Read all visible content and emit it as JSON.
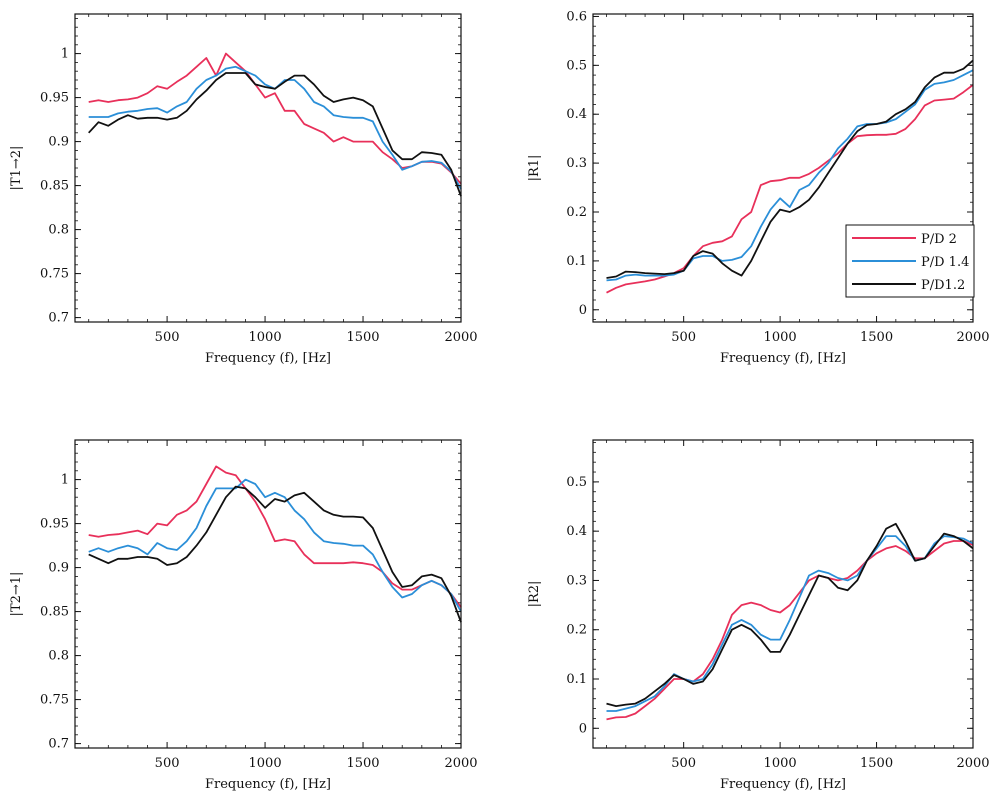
{
  "legend": {
    "entries": [
      {
        "name": "P/D 2",
        "color": "#e8305a"
      },
      {
        "name": "P/D 1.4",
        "color": "#2b8fd8"
      },
      {
        "name": "P/D1.2",
        "color": "#111111"
      }
    ]
  },
  "chart_data": [
    {
      "type": "line",
      "title": "",
      "xlabel": "Frequency (f), [Hz]",
      "ylabel": "|T1→2|",
      "xlim": [
        30,
        2000
      ],
      "ylim": [
        0.695,
        1.045
      ],
      "xticks": [
        500,
        1000,
        1500,
        2000
      ],
      "yticks": [
        0.7,
        0.75,
        0.8,
        0.85,
        0.9,
        0.95,
        1
      ],
      "ytick_labels": [
        "0.7",
        "0.75",
        "0.8",
        "0.85",
        "0.9",
        "0.95",
        "1"
      ],
      "grid": false,
      "x": [
        100,
        150,
        200,
        250,
        300,
        350,
        400,
        450,
        500,
        550,
        600,
        650,
        700,
        750,
        800,
        850,
        900,
        950,
        1000,
        1050,
        1100,
        1150,
        1200,
        1250,
        1300,
        1350,
        1400,
        1450,
        1500,
        1550,
        1600,
        1650,
        1700,
        1750,
        1800,
        1850,
        1900,
        1950,
        2000
      ],
      "series": [
        {
          "name": "P/D 2",
          "color": "#e8305a",
          "values": [
            0.945,
            0.947,
            0.945,
            0.947,
            0.948,
            0.95,
            0.955,
            0.963,
            0.96,
            0.968,
            0.975,
            0.985,
            0.995,
            0.975,
            1.0,
            0.99,
            0.98,
            0.965,
            0.95,
            0.955,
            0.935,
            0.935,
            0.92,
            0.915,
            0.91,
            0.9,
            0.905,
            0.9,
            0.9,
            0.9,
            0.888,
            0.88,
            0.87,
            0.872,
            0.877,
            0.877,
            0.875,
            0.865,
            0.852
          ]
        },
        {
          "name": "P/D 1.4",
          "color": "#2b8fd8",
          "values": [
            0.928,
            0.928,
            0.928,
            0.932,
            0.934,
            0.935,
            0.937,
            0.938,
            0.933,
            0.94,
            0.945,
            0.96,
            0.97,
            0.975,
            0.983,
            0.985,
            0.98,
            0.975,
            0.965,
            0.96,
            0.97,
            0.97,
            0.96,
            0.945,
            0.94,
            0.93,
            0.928,
            0.927,
            0.927,
            0.923,
            0.9,
            0.885,
            0.868,
            0.872,
            0.877,
            0.878,
            0.876,
            0.866,
            0.846
          ]
        },
        {
          "name": "P/D1.2",
          "color": "#111111",
          "values": [
            0.91,
            0.922,
            0.918,
            0.925,
            0.93,
            0.926,
            0.927,
            0.927,
            0.925,
            0.927,
            0.935,
            0.948,
            0.958,
            0.97,
            0.978,
            0.978,
            0.978,
            0.965,
            0.962,
            0.96,
            0.968,
            0.975,
            0.975,
            0.965,
            0.952,
            0.945,
            0.948,
            0.95,
            0.947,
            0.94,
            0.915,
            0.89,
            0.88,
            0.88,
            0.888,
            0.887,
            0.885,
            0.868,
            0.838
          ]
        }
      ]
    },
    {
      "type": "line",
      "title": "",
      "xlabel": "Frequency (f), [Hz]",
      "ylabel": "|R1|",
      "xlim": [
        30,
        2000
      ],
      "ylim": [
        -0.025,
        0.605
      ],
      "xticks": [
        500,
        1000,
        1500,
        2000
      ],
      "yticks": [
        0,
        0.1,
        0.2,
        0.3,
        0.4,
        0.5,
        0.6
      ],
      "ytick_labels": [
        "0",
        "0.1",
        "0.2",
        "0.3",
        "0.4",
        "0.5",
        "0.6"
      ],
      "grid": false,
      "legend_position": "right",
      "x": [
        100,
        150,
        200,
        250,
        300,
        350,
        400,
        450,
        500,
        550,
        600,
        650,
        700,
        750,
        800,
        850,
        900,
        950,
        1000,
        1050,
        1100,
        1150,
        1200,
        1250,
        1300,
        1350,
        1400,
        1450,
        1500,
        1550,
        1600,
        1650,
        1700,
        1750,
        1800,
        1850,
        1900,
        1950,
        2000
      ],
      "series": [
        {
          "name": "P/D 2",
          "color": "#e8305a",
          "values": [
            0.035,
            0.045,
            0.052,
            0.055,
            0.058,
            0.062,
            0.068,
            0.075,
            0.085,
            0.11,
            0.13,
            0.137,
            0.14,
            0.15,
            0.185,
            0.2,
            0.255,
            0.263,
            0.265,
            0.27,
            0.27,
            0.278,
            0.29,
            0.305,
            0.32,
            0.34,
            0.355,
            0.357,
            0.358,
            0.358,
            0.36,
            0.37,
            0.39,
            0.418,
            0.428,
            0.43,
            0.432,
            0.445,
            0.46
          ]
        },
        {
          "name": "P/D 1.4",
          "color": "#2b8fd8",
          "values": [
            0.06,
            0.062,
            0.07,
            0.072,
            0.07,
            0.07,
            0.07,
            0.072,
            0.08,
            0.105,
            0.11,
            0.11,
            0.1,
            0.102,
            0.108,
            0.13,
            0.17,
            0.205,
            0.228,
            0.21,
            0.245,
            0.255,
            0.28,
            0.3,
            0.33,
            0.35,
            0.375,
            0.38,
            0.38,
            0.383,
            0.39,
            0.405,
            0.42,
            0.45,
            0.462,
            0.465,
            0.47,
            0.48,
            0.49
          ]
        },
        {
          "name": "P/D1.2",
          "color": "#111111",
          "values": [
            0.065,
            0.068,
            0.078,
            0.077,
            0.075,
            0.074,
            0.073,
            0.075,
            0.08,
            0.11,
            0.12,
            0.115,
            0.095,
            0.08,
            0.07,
            0.1,
            0.14,
            0.18,
            0.205,
            0.2,
            0.21,
            0.225,
            0.25,
            0.28,
            0.31,
            0.34,
            0.365,
            0.378,
            0.38,
            0.385,
            0.4,
            0.41,
            0.425,
            0.455,
            0.475,
            0.485,
            0.485,
            0.493,
            0.51
          ]
        }
      ]
    },
    {
      "type": "line",
      "title": "",
      "xlabel": "Frequency (f), [Hz]",
      "ylabel": "|T2→1|",
      "xlim": [
        30,
        2000
      ],
      "ylim": [
        0.695,
        1.045
      ],
      "xticks": [
        500,
        1000,
        1500,
        2000
      ],
      "yticks": [
        0.7,
        0.75,
        0.8,
        0.85,
        0.9,
        0.95,
        1
      ],
      "ytick_labels": [
        "0.7",
        "0.75",
        "0.8",
        "0.85",
        "0.9",
        "0.95",
        "1"
      ],
      "grid": false,
      "x": [
        100,
        150,
        200,
        250,
        300,
        350,
        400,
        450,
        500,
        550,
        600,
        650,
        700,
        750,
        800,
        850,
        900,
        950,
        1000,
        1050,
        1100,
        1150,
        1200,
        1250,
        1300,
        1350,
        1400,
        1450,
        1500,
        1550,
        1600,
        1650,
        1700,
        1750,
        1800,
        1850,
        1900,
        1950,
        2000
      ],
      "series": [
        {
          "name": "P/D 2",
          "color": "#e8305a",
          "values": [
            0.937,
            0.935,
            0.937,
            0.938,
            0.94,
            0.942,
            0.938,
            0.95,
            0.948,
            0.96,
            0.965,
            0.975,
            0.995,
            1.015,
            1.008,
            1.005,
            0.99,
            0.975,
            0.955,
            0.93,
            0.932,
            0.93,
            0.915,
            0.905,
            0.905,
            0.905,
            0.905,
            0.906,
            0.905,
            0.903,
            0.895,
            0.882,
            0.875,
            0.875,
            0.88,
            0.885,
            0.88,
            0.87,
            0.855
          ]
        },
        {
          "name": "P/D 1.4",
          "color": "#2b8fd8",
          "values": [
            0.918,
            0.922,
            0.918,
            0.922,
            0.925,
            0.922,
            0.915,
            0.928,
            0.922,
            0.92,
            0.93,
            0.945,
            0.97,
            0.99,
            0.99,
            0.99,
            1.0,
            0.995,
            0.98,
            0.985,
            0.98,
            0.965,
            0.955,
            0.94,
            0.93,
            0.928,
            0.927,
            0.925,
            0.925,
            0.915,
            0.895,
            0.878,
            0.866,
            0.87,
            0.88,
            0.885,
            0.88,
            0.87,
            0.85
          ]
        },
        {
          "name": "P/D1.2",
          "color": "#111111",
          "values": [
            0.915,
            0.91,
            0.905,
            0.91,
            0.91,
            0.912,
            0.912,
            0.91,
            0.903,
            0.905,
            0.912,
            0.925,
            0.94,
            0.96,
            0.98,
            0.992,
            0.99,
            0.98,
            0.968,
            0.978,
            0.975,
            0.982,
            0.985,
            0.975,
            0.965,
            0.96,
            0.958,
            0.958,
            0.957,
            0.945,
            0.92,
            0.895,
            0.878,
            0.88,
            0.89,
            0.892,
            0.888,
            0.868,
            0.838
          ]
        }
      ]
    },
    {
      "type": "line",
      "title": "",
      "xlabel": "Frequency (f), [Hz]",
      "ylabel": "|R2|",
      "xlim": [
        30,
        2000
      ],
      "ylim": [
        -0.04,
        0.585
      ],
      "xticks": [
        500,
        1000,
        1500,
        2000
      ],
      "yticks": [
        0,
        0.1,
        0.2,
        0.3,
        0.4,
        0.5
      ],
      "ytick_labels": [
        "0",
        "0.1",
        "0.2",
        "0.3",
        "0.4",
        "0.5"
      ],
      "grid": false,
      "x": [
        100,
        150,
        200,
        250,
        300,
        350,
        400,
        450,
        500,
        550,
        600,
        650,
        700,
        750,
        800,
        850,
        900,
        950,
        1000,
        1050,
        1100,
        1150,
        1200,
        1250,
        1300,
        1350,
        1400,
        1450,
        1500,
        1550,
        1600,
        1650,
        1700,
        1750,
        1800,
        1850,
        1900,
        1950,
        2000
      ],
      "series": [
        {
          "name": "P/D 2",
          "color": "#e8305a",
          "values": [
            0.018,
            0.022,
            0.023,
            0.03,
            0.045,
            0.06,
            0.08,
            0.1,
            0.1,
            0.095,
            0.11,
            0.14,
            0.18,
            0.23,
            0.25,
            0.255,
            0.25,
            0.24,
            0.235,
            0.25,
            0.275,
            0.3,
            0.31,
            0.305,
            0.3,
            0.305,
            0.32,
            0.34,
            0.355,
            0.365,
            0.37,
            0.36,
            0.345,
            0.345,
            0.36,
            0.375,
            0.38,
            0.38,
            0.372
          ]
        },
        {
          "name": "P/D 1.4",
          "color": "#2b8fd8",
          "values": [
            0.035,
            0.035,
            0.04,
            0.045,
            0.055,
            0.065,
            0.085,
            0.11,
            0.1,
            0.095,
            0.1,
            0.13,
            0.17,
            0.21,
            0.22,
            0.21,
            0.19,
            0.18,
            0.18,
            0.22,
            0.265,
            0.31,
            0.32,
            0.315,
            0.305,
            0.3,
            0.31,
            0.34,
            0.365,
            0.39,
            0.39,
            0.37,
            0.34,
            0.345,
            0.375,
            0.39,
            0.388,
            0.385,
            0.375
          ]
        },
        {
          "name": "P/D1.2",
          "color": "#111111",
          "values": [
            0.05,
            0.045,
            0.048,
            0.05,
            0.06,
            0.075,
            0.09,
            0.108,
            0.1,
            0.09,
            0.095,
            0.12,
            0.16,
            0.2,
            0.21,
            0.2,
            0.18,
            0.155,
            0.155,
            0.19,
            0.23,
            0.27,
            0.31,
            0.305,
            0.285,
            0.28,
            0.3,
            0.34,
            0.37,
            0.405,
            0.415,
            0.38,
            0.34,
            0.345,
            0.37,
            0.395,
            0.39,
            0.38,
            0.365
          ]
        }
      ]
    }
  ]
}
